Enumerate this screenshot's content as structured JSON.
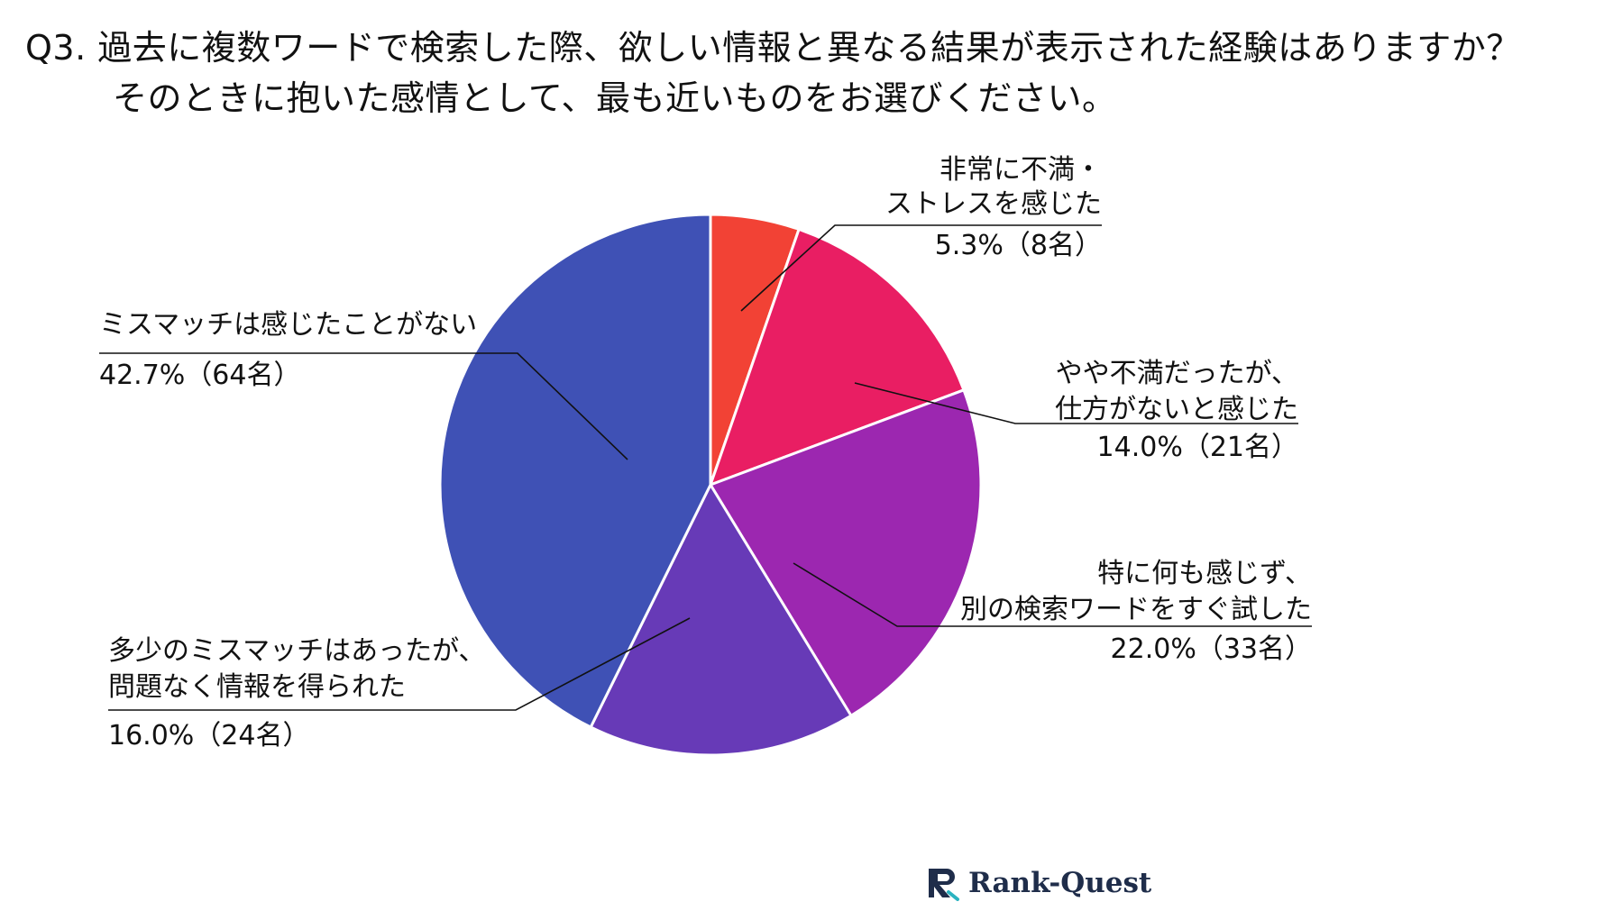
{
  "title": {
    "line1": "Q3. 過去に複数ワードで検索した際、欲しい情報と異なる結果が表示された経験はありますか？",
    "line2": "そのときに抱いた感情として、最も近いものをお選びください。"
  },
  "chart_data": {
    "type": "pie",
    "title": "Q3. 過去に複数ワードで検索した際、欲しい情報と異なる結果が表示された経験はありますか？ そのときに抱いた感情として、最も近いものをお選びください。",
    "start": "12 o'clock, clockwise",
    "slices": [
      {
        "label_lines": [
          "非常に不満・",
          "ストレスを感じた"
        ],
        "value": 5.3,
        "count": 8,
        "value_label": "5.3%（8名）",
        "color": "#F24235"
      },
      {
        "label_lines": [
          "やや不満だったが、",
          "仕方がないと感じた"
        ],
        "value": 14.0,
        "count": 21,
        "value_label": "14.0%（21名）",
        "color": "#E91E63"
      },
      {
        "label_lines": [
          "特に何も感じず、",
          "別の検索ワードをすぐ試した"
        ],
        "value": 22.0,
        "count": 33,
        "value_label": "22.0%（33名）",
        "color": "#9C27B0"
      },
      {
        "label_lines": [
          "多少のミスマッチはあったが、",
          "問題なく情報を得られた"
        ],
        "value": 16.0,
        "count": 24,
        "value_label": "16.0%（24名）",
        "color": "#673AB7"
      },
      {
        "label_lines": [
          "ミスマッチは感じたことがない"
        ],
        "value": 42.7,
        "count": 64,
        "value_label": "42.7%（64名）",
        "color": "#3F51B5"
      }
    ]
  },
  "logo": {
    "text": "Rank-Quest"
  }
}
